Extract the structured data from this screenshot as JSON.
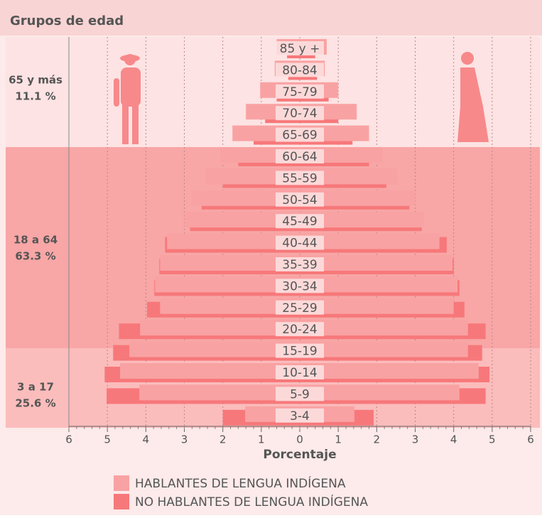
{
  "chart_data": {
    "type": "pyramid",
    "title": "Grupos de edad",
    "x_label": "Porcentaje",
    "categories": [
      "85 y +",
      "80-84",
      "75-79",
      "70-74",
      "65-69",
      "60-64",
      "55-59",
      "50-54",
      "45-49",
      "40-44",
      "35-39",
      "30-34",
      "25-29",
      "20-24",
      "15-19",
      "10-14",
      "5-9",
      "3-4"
    ],
    "series": [
      {
        "name": "NO HABLANTES DE LENGUA INDÍGENA",
        "color": "#f7787a",
        "left": [
          0.33,
          0.3,
          0.6,
          0.9,
          1.2,
          1.6,
          2.0,
          2.55,
          2.85,
          3.5,
          3.65,
          3.78,
          3.97,
          4.7,
          4.85,
          5.07,
          5.02,
          2.0
        ],
        "right": [
          0.4,
          0.45,
          0.75,
          1.0,
          1.37,
          1.8,
          2.25,
          2.85,
          3.17,
          3.82,
          4.0,
          4.15,
          4.28,
          4.83,
          4.74,
          4.93,
          4.83,
          1.92
        ]
      },
      {
        "name": "HABLANTES DE LENGUA INDÍGENA",
        "color": "#f9a2a3",
        "left": [
          0.6,
          0.65,
          1.03,
          1.4,
          1.75,
          2.07,
          2.45,
          2.82,
          3.0,
          3.45,
          3.63,
          3.76,
          3.63,
          4.15,
          4.43,
          4.67,
          4.17,
          1.42
        ],
        "right": [
          0.7,
          0.65,
          1.0,
          1.48,
          1.8,
          2.15,
          2.55,
          3.0,
          3.23,
          3.63,
          3.97,
          4.1,
          4.0,
          4.37,
          4.37,
          4.65,
          4.15,
          1.42
        ]
      }
    ],
    "groups": [
      {
        "label": "65 y más",
        "share": "11.1 %"
      },
      {
        "label": "18 a 64",
        "share": "63.3 %"
      },
      {
        "label": "3 a 17",
        "share": "25.6 %"
      }
    ],
    "xlim": [
      -6,
      6
    ],
    "xticks": [
      {
        "value": -6,
        "label": "6"
      },
      {
        "value": -5,
        "label": "5"
      },
      {
        "value": -4,
        "label": "4"
      },
      {
        "value": -3,
        "label": "3"
      },
      {
        "value": -2,
        "label": "2"
      },
      {
        "value": -1,
        "label": "1"
      },
      0,
      1,
      2,
      3,
      4,
      5,
      6
    ],
    "grid": true
  }
}
